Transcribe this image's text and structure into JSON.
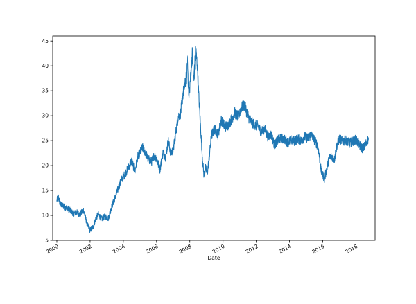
{
  "chart_data": {
    "type": "line",
    "title": "",
    "xlabel": "Date",
    "ylabel": "",
    "xlim": [
      1999.75,
      2019.15
    ],
    "ylim": [
      5.0,
      46.0
    ],
    "x_ticks": [
      2000,
      2002,
      2004,
      2006,
      2008,
      2010,
      2012,
      2014,
      2016,
      2018
    ],
    "x_tick_labels": [
      "2000",
      "2002",
      "2004",
      "2006",
      "2008",
      "2010",
      "2012",
      "2014",
      "2016",
      "2018"
    ],
    "y_ticks": [
      5,
      10,
      15,
      20,
      25,
      30,
      35,
      40,
      45
    ],
    "y_tick_labels": [
      "5",
      "10",
      "15",
      "20",
      "25",
      "30",
      "35",
      "40",
      "45"
    ],
    "grid": false,
    "legend": "none",
    "series": [
      {
        "color": "#1f77b4",
        "x": [
          2000.0,
          2000.08,
          2000.2,
          2000.4,
          2000.6,
          2000.8,
          2001.0,
          2001.2,
          2001.4,
          2001.6,
          2001.75,
          2001.85,
          2002.0,
          2002.2,
          2002.35,
          2002.5,
          2002.7,
          2002.9,
          2003.1,
          2003.3,
          2003.5,
          2003.7,
          2003.9,
          2004.1,
          2004.3,
          2004.5,
          2004.7,
          2004.85,
          2005.0,
          2005.15,
          2005.3,
          2005.5,
          2005.7,
          2005.85,
          2006.0,
          2006.2,
          2006.4,
          2006.55,
          2006.7,
          2006.85,
          2007.0,
          2007.15,
          2007.3,
          2007.45,
          2007.6,
          2007.75,
          2007.85,
          2007.95,
          2008.05,
          2008.15,
          2008.25,
          2008.35,
          2008.45,
          2008.55,
          2008.65,
          2008.75,
          2008.85,
          2008.95,
          2009.05,
          2009.15,
          2009.3,
          2009.5,
          2009.7,
          2009.9,
          2010.1,
          2010.3,
          2010.5,
          2010.7,
          2010.9,
          2011.1,
          2011.3,
          2011.4,
          2011.55,
          2011.7,
          2011.9,
          2012.1,
          2012.3,
          2012.5,
          2012.7,
          2012.9,
          2013.1,
          2013.3,
          2013.5,
          2013.7,
          2013.9,
          2014.1,
          2014.3,
          2014.5,
          2014.7,
          2014.9,
          2015.1,
          2015.3,
          2015.5,
          2015.7,
          2015.8,
          2015.9,
          2016.0,
          2016.1,
          2016.25,
          2016.4,
          2016.55,
          2016.7,
          2016.85,
          2017.0,
          2017.2,
          2017.4,
          2017.6,
          2017.8,
          2018.0,
          2018.2,
          2018.4,
          2018.55,
          2018.65,
          2018.75
        ],
        "y": [
          12.9,
          13.8,
          12.3,
          11.9,
          11.5,
          11.0,
          10.4,
          10.6,
          10.2,
          11.1,
          9.2,
          8.0,
          7.0,
          7.8,
          9.5,
          10.2,
          9.3,
          9.8,
          9.4,
          11.8,
          13.5,
          15.5,
          17.2,
          18.3,
          19.5,
          21.0,
          18.8,
          21.6,
          22.5,
          23.6,
          22.8,
          21.3,
          20.8,
          22.0,
          21.5,
          19.2,
          22.8,
          21.6,
          25.0,
          22.5,
          23.0,
          26.4,
          29.8,
          30.5,
          34.6,
          36.8,
          41.8,
          33.5,
          38.0,
          42.5,
          36.8,
          43.6,
          40.2,
          33.5,
          27.8,
          22.0,
          18.0,
          19.5,
          18.4,
          21.0,
          26.0,
          27.3,
          26.2,
          29.2,
          27.8,
          28.1,
          29.2,
          30.6,
          29.8,
          31.6,
          32.1,
          31.0,
          29.6,
          28.8,
          28.1,
          27.9,
          26.8,
          27.4,
          25.8,
          26.2,
          24.1,
          25.1,
          25.5,
          25.2,
          24.6,
          25.1,
          24.9,
          25.4,
          24.9,
          25.8,
          25.5,
          26.2,
          25.1,
          24.0,
          21.8,
          19.0,
          18.2,
          17.2,
          19.5,
          21.6,
          21.8,
          21.2,
          24.1,
          25.4,
          24.8,
          25.1,
          24.4,
          24.9,
          25.2,
          24.1,
          23.4,
          24.0,
          24.8,
          25.4
        ]
      }
    ]
  }
}
